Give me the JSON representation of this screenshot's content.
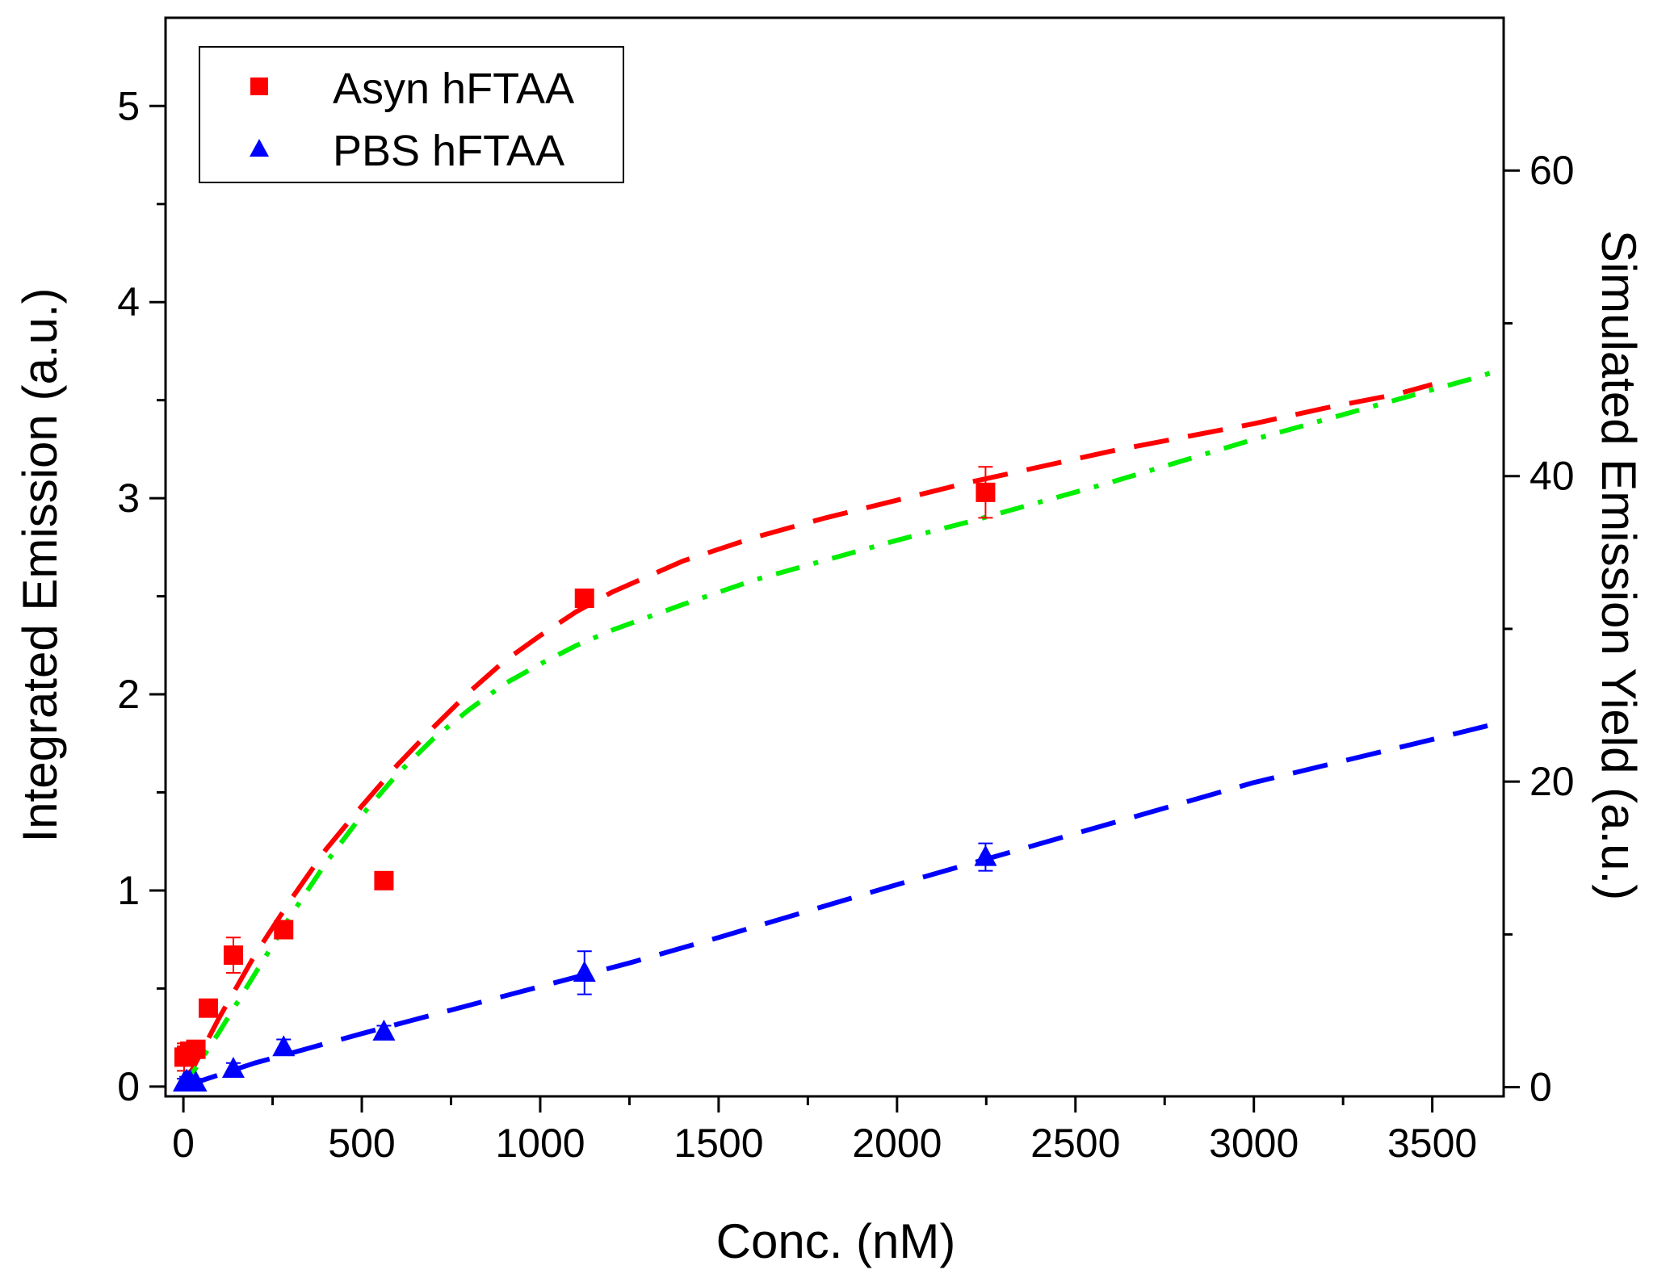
{
  "chart_data": {
    "type": "scatter",
    "title": "",
    "xlabel": "Conc. (nM)",
    "ylabel": "Integrated Emission (a.u.)",
    "y2label": "Simulated Emission Yield (a.u.)",
    "xlim": [
      -50,
      3700
    ],
    "ylim": [
      -0.05,
      5.45
    ],
    "y2lim": [
      -0.6,
      70
    ],
    "x_ticks": [
      0,
      500,
      1000,
      1500,
      2000,
      2500,
      3000,
      3500
    ],
    "x_tick_labels": [
      "0",
      "500",
      "1000",
      "1500",
      "2000",
      "2500",
      "3000",
      "3500"
    ],
    "x_minor_ticks": [
      250,
      750,
      1250,
      1750,
      2250,
      2750,
      3250
    ],
    "y_ticks": [
      0,
      1,
      2,
      3,
      4,
      5
    ],
    "y_tick_labels": [
      "0",
      "1",
      "2",
      "3",
      "4",
      "5"
    ],
    "y_minor_ticks": [
      0.5,
      1.5,
      2.5,
      3.5,
      4.5
    ],
    "y2_ticks": [
      0,
      20,
      40,
      60
    ],
    "y2_tick_labels": [
      "0",
      "20",
      "40",
      "60"
    ],
    "y2_minor_ticks": [
      10,
      30,
      50
    ],
    "legend_position": "top-left",
    "grid": false,
    "series": [
      {
        "name": "Asyn hFTAA",
        "marker": "square",
        "color": "#ff0000",
        "axis": "left",
        "x": [
          2,
          9,
          18,
          35,
          70,
          140,
          281,
          562,
          1124,
          2248
        ],
        "y": [
          0.15,
          0.16,
          0.18,
          0.19,
          0.4,
          0.67,
          0.8,
          1.05,
          2.49,
          3.03
        ],
        "y_err": [
          0.07,
          0.04,
          0.04,
          0.03,
          0.03,
          0.09,
          0.04,
          0.02,
          0.03,
          0.13
        ]
      },
      {
        "name": "PBS hFTAA",
        "marker": "triangle",
        "color": "#0000ff",
        "axis": "left",
        "x": [
          2,
          9,
          18,
          35,
          140,
          281,
          562,
          1124,
          2248
        ],
        "y": [
          0.02,
          0.03,
          0.03,
          0.02,
          0.09,
          0.2,
          0.28,
          0.58,
          1.17
        ],
        "y_err": [
          0.02,
          0.02,
          0.02,
          0.02,
          0.03,
          0.04,
          0.03,
          0.11,
          0.07
        ]
      }
    ],
    "fits": [
      {
        "name": "Asyn hFTAA fit",
        "style": "dashed",
        "color": "#ff0000",
        "axis": "left",
        "x": [
          0,
          100,
          200,
          300,
          400,
          500,
          600,
          700,
          800,
          900,
          1000,
          1100,
          1200,
          1400,
          1600,
          1800,
          2000,
          2200,
          2400,
          2600,
          2800,
          3000,
          3200,
          3400,
          3500
        ],
        "y": [
          0.0,
          0.35,
          0.67,
          0.95,
          1.21,
          1.43,
          1.64,
          1.83,
          2.01,
          2.17,
          2.3,
          2.42,
          2.52,
          2.68,
          2.8,
          2.9,
          2.99,
          3.08,
          3.16,
          3.24,
          3.31,
          3.38,
          3.46,
          3.53,
          3.58
        ]
      },
      {
        "name": "Simulated emission yield",
        "style": "dash-dot",
        "color": "#00ee00",
        "axis": "right",
        "x": [
          0,
          100,
          200,
          300,
          400,
          500,
          600,
          700,
          800,
          900,
          1000,
          1100,
          1200,
          1400,
          1600,
          1800,
          2000,
          2200,
          2400,
          2600,
          2800,
          3000,
          3200,
          3400,
          3600,
          3700
        ],
        "y": [
          0,
          3.6,
          7.4,
          11.2,
          14.7,
          17.8,
          20.5,
          22.8,
          24.7,
          26.4,
          27.7,
          28.9,
          29.9,
          31.6,
          33.2,
          34.5,
          35.8,
          37.0,
          38.3,
          39.6,
          41.0,
          42.4,
          43.7,
          45.0,
          46.3,
          47.0
        ]
      },
      {
        "name": "PBS hFTAA fit",
        "style": "dashed",
        "color": "#0000ff",
        "axis": "left",
        "x": [
          0,
          100,
          200,
          300,
          500,
          750,
          1000,
          1250,
          1500,
          2000,
          2500,
          3000,
          3500,
          3700
        ],
        "y": [
          0.0,
          0.06,
          0.12,
          0.17,
          0.27,
          0.39,
          0.51,
          0.63,
          0.76,
          1.03,
          1.29,
          1.55,
          1.77,
          1.86
        ]
      }
    ]
  }
}
